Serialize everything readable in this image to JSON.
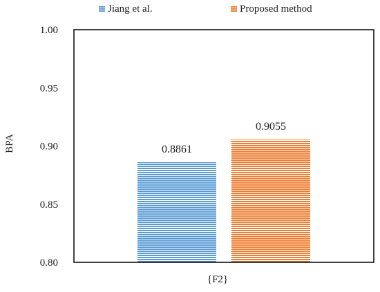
{
  "chart_data": {
    "type": "bar",
    "title": "",
    "xlabel": "",
    "ylabel": "BPA",
    "categories": [
      "{F2}"
    ],
    "series": [
      {
        "name": "Jiang et al.",
        "values": [
          0.8861
        ],
        "color": "#5b9bd5"
      },
      {
        "name": "Proposed method",
        "values": [
          0.9055
        ],
        "color": "#ed7d31"
      }
    ],
    "data_labels": [
      "0.8861",
      "0.9055"
    ],
    "ylim": [
      0.8,
      1.0
    ],
    "yticks": [
      "0.80",
      "0.85",
      "0.90",
      "0.95",
      "1.00"
    ],
    "legend_position": "top-center",
    "grid": false,
    "bar_pattern": "horizontal-stripes"
  }
}
